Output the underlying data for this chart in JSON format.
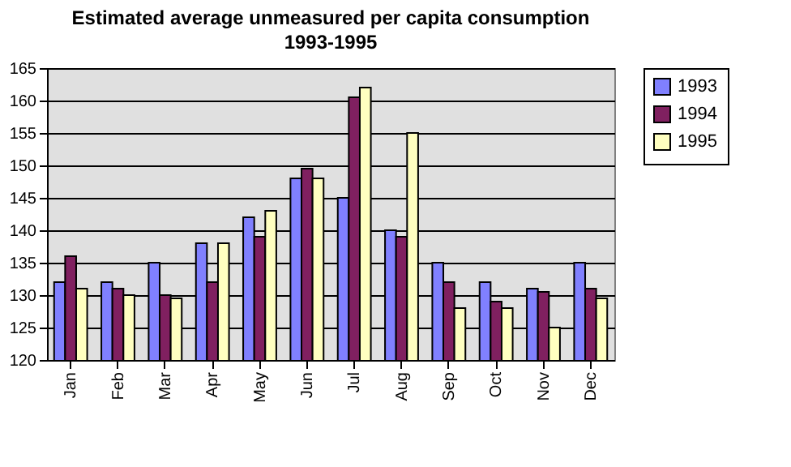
{
  "chart_data": {
    "type": "bar",
    "title": "Estimated average unmeasured per capita consumption",
    "subtitle": "1993-1995",
    "categories": [
      "Jan",
      "Feb",
      "Mar",
      "Apr",
      "May",
      "Jun",
      "Jul",
      "Aug",
      "Sep",
      "Oct",
      "Nov",
      "Dec"
    ],
    "series": [
      {
        "name": "1993",
        "color": "#8080ff",
        "values": [
          132,
          132,
          135,
          138,
          142,
          148,
          145,
          140,
          135,
          132,
          131,
          135
        ]
      },
      {
        "name": "1994",
        "color": "#802060",
        "values": [
          136,
          131,
          130,
          132,
          139,
          149.5,
          160.5,
          139,
          132,
          129,
          130.5,
          131
        ]
      },
      {
        "name": "1995",
        "color": "#ffffc0",
        "values": [
          131,
          130,
          129.5,
          138,
          143,
          148,
          162,
          155,
          128,
          128,
          125,
          129.5
        ]
      }
    ],
    "ylim": [
      120,
      165
    ],
    "yticks": [
      120,
      125,
      130,
      135,
      140,
      145,
      150,
      155,
      160,
      165
    ],
    "grid": "y",
    "legend": "right"
  }
}
